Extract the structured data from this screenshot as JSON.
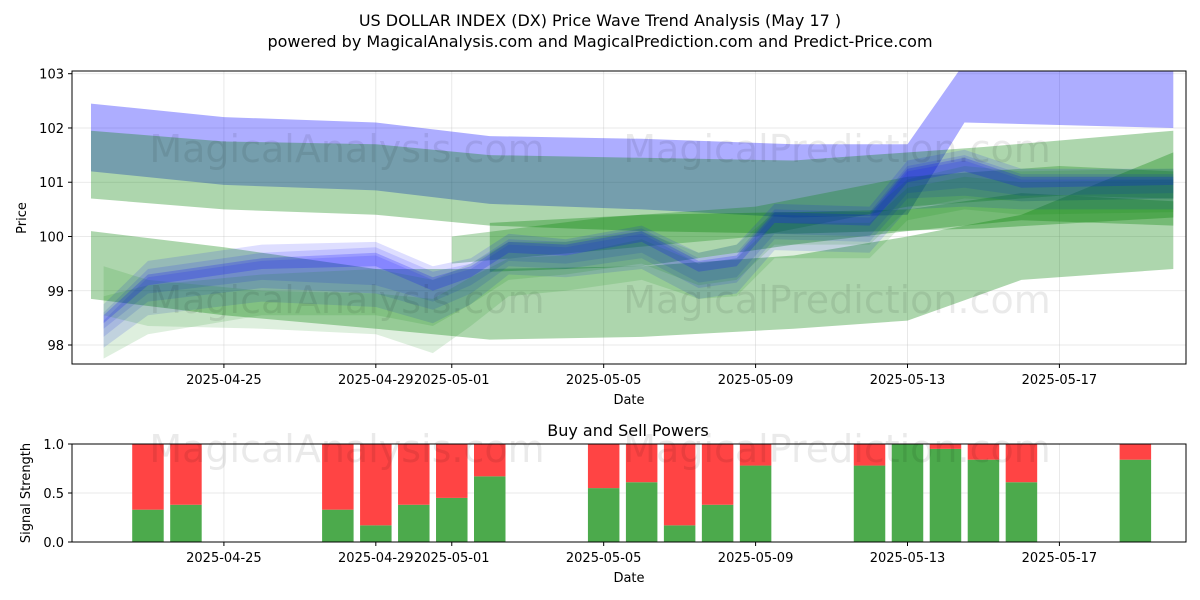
{
  "chart_data": [
    {
      "type": "area",
      "title": "US DOLLAR INDEX (DX) Price Wave Trend Analysis (May 17 )",
      "subtitle": "powered by MagicalAnalysis.com and MagicalPrediction.com and Predict-Price.com",
      "xlabel": "Date",
      "ylabel": "Price",
      "xlim": [
        "2025-04-21T00:00",
        "2025-05-20T08:00"
      ],
      "ylim": [
        97.65,
        103.05
      ],
      "xticks": [
        "2025-04-25",
        "2025-04-29",
        "2025-05-01",
        "2025-05-05",
        "2025-05-09",
        "2025-05-13",
        "2025-05-17"
      ],
      "yticks": [
        98,
        99,
        100,
        101,
        102,
        103
      ],
      "grid": true,
      "colors": {
        "blue": "#0000ff",
        "green": "#008000"
      },
      "watermark": [
        "MagicalAnalysis.com",
        "MagicalPrediction.com"
      ],
      "bands": [
        {
          "color": "blue",
          "opacity": 0.32,
          "x": [
            "2025-04-21T12:00",
            "2025-04-25",
            "2025-04-29",
            "2025-05-02",
            "2025-05-06",
            "2025-05-10",
            "2025-05-13",
            "2025-05-14T12:00",
            "2025-05-20"
          ],
          "upper": [
            102.45,
            102.2,
            102.1,
            101.85,
            101.8,
            101.7,
            101.7,
            103.2,
            103.1
          ],
          "lower": [
            101.2,
            100.95,
            100.85,
            100.6,
            100.5,
            100.35,
            100.4,
            102.1,
            102.0
          ]
        },
        {
          "color": "green",
          "opacity": 0.32,
          "x": [
            "2025-04-21T12:00",
            "2025-04-25",
            "2025-04-29",
            "2025-05-02",
            "2025-05-06",
            "2025-05-10",
            "2025-05-15",
            "2025-05-20"
          ],
          "upper": [
            101.95,
            101.75,
            101.7,
            101.5,
            101.45,
            101.4,
            101.65,
            101.95
          ],
          "lower": [
            100.7,
            100.5,
            100.4,
            100.2,
            100.1,
            100.05,
            100.15,
            100.35
          ]
        },
        {
          "color": "green",
          "opacity": 0.32,
          "x": [
            "2025-04-21T12:00",
            "2025-04-25",
            "2025-04-29",
            "2025-05-02",
            "2025-05-06",
            "2025-05-10",
            "2025-05-13",
            "2025-05-16",
            "2025-05-20"
          ],
          "upper": [
            100.1,
            99.8,
            99.4,
            99.4,
            99.45,
            99.65,
            100.0,
            100.4,
            101.55
          ],
          "lower": [
            98.85,
            98.55,
            98.3,
            98.1,
            98.15,
            98.3,
            98.45,
            99.2,
            99.4
          ]
        },
        {
          "color": "green",
          "opacity": 0.32,
          "x": [
            "2025-05-02",
            "2025-05-06",
            "2025-05-10",
            "2025-05-13",
            "2025-05-16",
            "2025-05-20"
          ],
          "upper": [
            100.25,
            100.4,
            100.45,
            100.5,
            100.8,
            100.65
          ],
          "lower": [
            99.35,
            99.45,
            99.85,
            100.1,
            100.3,
            100.2
          ]
        },
        {
          "color": "green",
          "opacity": 0.28,
          "x": [
            "2025-05-01",
            "2025-05-05",
            "2025-05-09",
            "2025-05-13",
            "2025-05-17",
            "2025-05-20"
          ],
          "upper": [
            100.0,
            100.35,
            100.55,
            101.1,
            101.3,
            101.2
          ],
          "lower": [
            99.5,
            99.75,
            100.0,
            100.55,
            100.75,
            100.7
          ]
        },
        {
          "color": "blue",
          "opacity": 0.13,
          "x": [
            "2025-04-21T20:00",
            "2025-04-23",
            "2025-04-26",
            "2025-04-29",
            "2025-04-30T12:00",
            "2025-05-01T12:00",
            "2025-05-02T12:00",
            "2025-05-04",
            "2025-05-06",
            "2025-05-07T12:00",
            "2025-05-08T12:00",
            "2025-05-09T12:00",
            "2025-05-12",
            "2025-05-13",
            "2025-05-14T12:00",
            "2025-05-16",
            "2025-05-20"
          ],
          "upper": [
            98.75,
            99.55,
            99.85,
            99.9,
            99.45,
            99.6,
            100.05,
            99.95,
            100.2,
            99.7,
            99.85,
            100.6,
            100.55,
            101.4,
            101.6,
            101.25,
            101.25
          ],
          "lower": [
            98.15,
            98.8,
            99.05,
            98.95,
            98.65,
            98.95,
            99.45,
            99.4,
            99.6,
            99.05,
            99.15,
            99.95,
            99.9,
            100.7,
            100.75,
            100.65,
            100.7
          ]
        },
        {
          "color": "blue",
          "opacity": 0.13,
          "x": [
            "2025-04-21T20:00",
            "2025-04-23",
            "2025-04-26",
            "2025-04-29",
            "2025-04-30T12:00",
            "2025-05-01T12:00",
            "2025-05-02T12:00",
            "2025-05-04",
            "2025-05-06",
            "2025-05-07T12:00",
            "2025-05-08T12:00",
            "2025-05-09T12:00",
            "2025-05-12",
            "2025-05-13",
            "2025-05-14T12:00",
            "2025-05-16",
            "2025-05-20"
          ],
          "upper": [
            98.45,
            99.25,
            99.55,
            99.65,
            99.2,
            99.4,
            99.85,
            99.8,
            100.05,
            99.5,
            99.6,
            100.4,
            100.35,
            101.2,
            101.4,
            101.05,
            101.05
          ],
          "lower": [
            97.95,
            98.55,
            98.8,
            98.7,
            98.4,
            98.75,
            99.3,
            99.25,
            99.4,
            98.85,
            98.95,
            99.75,
            99.7,
            100.5,
            100.55,
            100.5,
            100.5
          ]
        },
        {
          "color": "blue",
          "opacity": 0.13,
          "x": [
            "2025-04-21T20:00",
            "2025-04-23",
            "2025-04-26",
            "2025-04-29",
            "2025-04-30T12:00",
            "2025-05-01T12:00",
            "2025-05-02T12:00",
            "2025-05-04",
            "2025-05-06",
            "2025-05-07T12:00",
            "2025-05-08T12:00",
            "2025-05-09T12:00",
            "2025-05-12",
            "2025-05-13",
            "2025-05-14T12:00",
            "2025-05-16",
            "2025-05-20"
          ],
          "upper": [
            98.6,
            99.4,
            99.7,
            99.8,
            99.35,
            99.5,
            99.95,
            99.9,
            100.15,
            99.6,
            99.7,
            100.5,
            100.45,
            101.3,
            101.5,
            101.15,
            101.15
          ],
          "lower": [
            98.3,
            98.95,
            99.2,
            99.1,
            98.8,
            99.1,
            99.55,
            99.5,
            99.7,
            99.15,
            99.25,
            100.05,
            100.0,
            100.8,
            100.9,
            100.75,
            100.8
          ]
        },
        {
          "color": "green",
          "opacity": 0.13,
          "x": [
            "2025-04-21T20:00",
            "2025-04-23",
            "2025-04-26",
            "2025-04-29",
            "2025-04-30T12:00",
            "2025-05-01T12:00",
            "2025-05-02T12:00",
            "2025-05-04",
            "2025-05-06",
            "2025-05-07T12:00",
            "2025-05-08T12:00",
            "2025-05-09T12:00",
            "2025-05-12",
            "2025-05-13",
            "2025-05-14T12:00",
            "2025-05-16",
            "2025-05-20"
          ],
          "upper": [
            99.45,
            99.2,
            99.0,
            98.95,
            98.85,
            99.25,
            99.6,
            99.65,
            99.95,
            99.5,
            99.6,
            100.25,
            100.25,
            100.9,
            101.1,
            101.0,
            101.05
          ],
          "lower": [
            98.55,
            98.35,
            98.3,
            98.2,
            97.85,
            98.35,
            98.9,
            99.0,
            99.2,
            98.85,
            98.9,
            99.6,
            99.6,
            100.3,
            100.5,
            100.4,
            100.45
          ]
        },
        {
          "color": "green",
          "opacity": 0.13,
          "x": [
            "2025-04-21T20:00",
            "2025-04-23",
            "2025-04-26",
            "2025-04-29",
            "2025-04-30T12:00",
            "2025-05-01T12:00",
            "2025-05-02T12:00",
            "2025-05-04",
            "2025-05-06",
            "2025-05-07T12:00",
            "2025-05-08T12:00",
            "2025-05-09T12:00",
            "2025-05-12",
            "2025-05-13",
            "2025-05-14T12:00",
            "2025-05-16",
            "2025-05-20"
          ],
          "upper": [
            98.9,
            99.1,
            99.3,
            99.4,
            99.2,
            99.5,
            99.9,
            99.9,
            100.1,
            99.7,
            99.85,
            100.45,
            100.45,
            101.05,
            101.3,
            101.2,
            101.25
          ],
          "lower": [
            97.75,
            98.2,
            98.55,
            98.55,
            98.35,
            98.75,
            99.2,
            99.3,
            99.5,
            99.1,
            99.2,
            99.85,
            99.85,
            100.5,
            100.7,
            100.65,
            100.7
          ]
        },
        {
          "color": "blue",
          "opacity": 0.2,
          "x": [
            "2025-04-21T20:00",
            "2025-04-23",
            "2025-04-26",
            "2025-04-29",
            "2025-04-30T12:00",
            "2025-05-01T12:00",
            "2025-05-02T12:00",
            "2025-05-04",
            "2025-05-06",
            "2025-05-07T12:00",
            "2025-05-08T12:00",
            "2025-05-09T12:00",
            "2025-05-12",
            "2025-05-13",
            "2025-05-14T12:00",
            "2025-05-16",
            "2025-05-20"
          ],
          "upper": [
            98.55,
            99.3,
            99.6,
            99.7,
            99.25,
            99.45,
            99.9,
            99.85,
            100.1,
            99.55,
            99.65,
            100.45,
            100.4,
            101.25,
            101.45,
            101.1,
            101.1
          ],
          "lower": [
            98.4,
            99.1,
            99.4,
            99.45,
            99.0,
            99.25,
            99.7,
            99.65,
            99.9,
            99.35,
            99.45,
            100.25,
            100.2,
            101.0,
            101.2,
            100.9,
            100.95
          ]
        }
      ]
    },
    {
      "type": "bar",
      "title": "Buy and Sell Powers",
      "xlabel": "Date",
      "ylabel": "Signal Strength",
      "ylim": [
        0,
        1
      ],
      "yticks": [
        "0.0",
        "0.5",
        "1.0"
      ],
      "xticks": [
        "2025-04-25",
        "2025-04-29",
        "2025-05-01",
        "2025-05-05",
        "2025-05-09",
        "2025-05-13",
        "2025-05-17"
      ],
      "colors": {
        "buy": "#4caa4c",
        "sell": "#ff4444"
      },
      "categories": [
        "2025-04-23",
        "2025-04-24",
        "2025-04-28",
        "2025-04-29",
        "2025-04-30",
        "2025-05-01",
        "2025-05-02",
        "2025-05-05",
        "2025-05-06",
        "2025-05-07",
        "2025-05-08",
        "2025-05-09",
        "2025-05-12",
        "2025-05-13",
        "2025-05-14",
        "2025-05-15",
        "2025-05-16",
        "2025-05-19"
      ],
      "series": [
        {
          "name": "Buy",
          "values": [
            0.33,
            0.38,
            0.33,
            0.17,
            0.38,
            0.45,
            0.67,
            0.55,
            0.61,
            0.17,
            0.38,
            0.78,
            0.78,
            1.0,
            0.95,
            0.84,
            0.61,
            0.84
          ]
        },
        {
          "name": "Sell",
          "values": [
            0.67,
            0.62,
            0.67,
            0.83,
            0.62,
            0.55,
            0.33,
            0.45,
            0.39,
            0.83,
            0.62,
            0.22,
            0.22,
            0.0,
            0.05,
            0.16,
            0.39,
            0.16
          ]
        }
      ],
      "watermark": [
        "MagicalAnalysis.com",
        "MagicalPrediction.com"
      ]
    }
  ]
}
